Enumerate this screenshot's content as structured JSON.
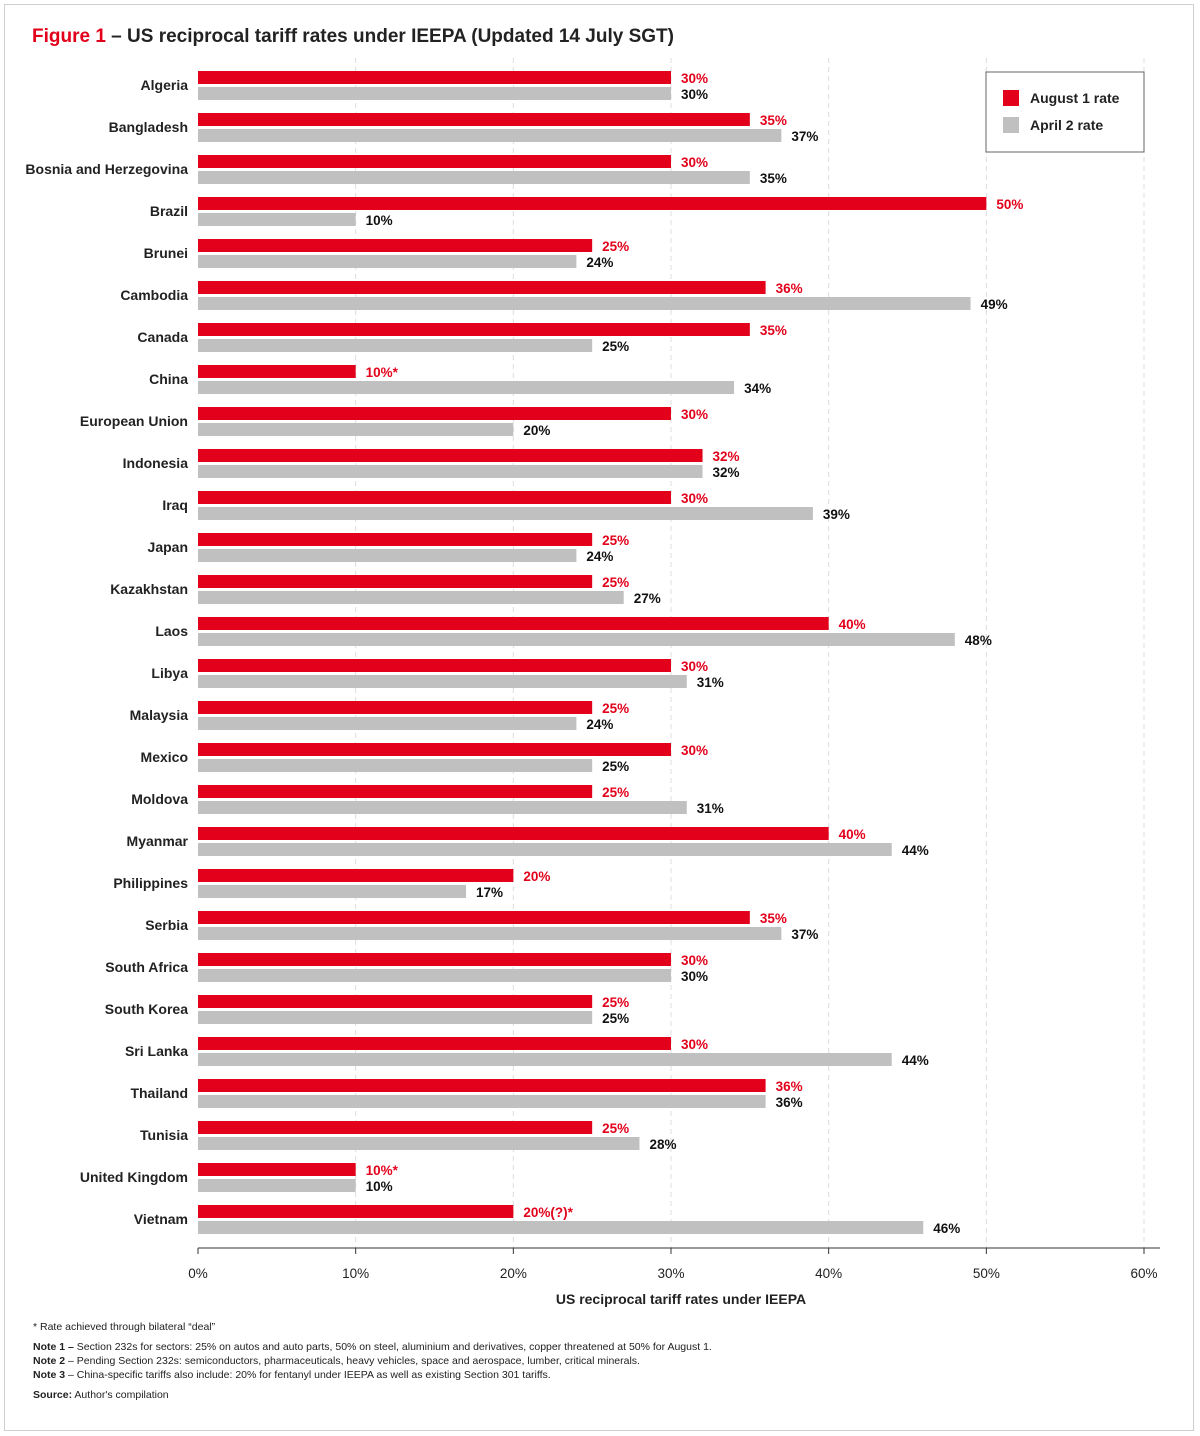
{
  "title": {
    "figure_label": "Figure 1",
    "text": " – US reciprocal tariff rates under IEEPA (Updated 14 July SGT)"
  },
  "colors": {
    "august": "#e2001a",
    "april": "#c0c0c0",
    "august_label": "#e2001a",
    "april_label": "#111111"
  },
  "chart_data": {
    "type": "bar",
    "orientation": "horizontal",
    "categories": [
      "Algeria",
      "Bangladesh",
      "Bosnia and Herzegovina",
      "Brazil",
      "Brunei",
      "Cambodia",
      "Canada",
      "China",
      "European Union",
      "Indonesia",
      "Iraq",
      "Japan",
      "Kazakhstan",
      "Laos",
      "Libya",
      "Malaysia",
      "Mexico",
      "Moldova",
      "Myanmar",
      "Philippines",
      "Serbia",
      "South Africa",
      "South Korea",
      "Sri Lanka",
      "Thailand",
      "Tunisia",
      "United Kingdom",
      "Vietnam"
    ],
    "series": [
      {
        "name": "August 1 rate",
        "values": [
          30,
          35,
          30,
          50,
          25,
          36,
          35,
          10,
          30,
          32,
          30,
          25,
          25,
          40,
          30,
          25,
          30,
          25,
          40,
          20,
          35,
          30,
          25,
          30,
          36,
          25,
          10,
          20
        ],
        "labels": [
          "30%",
          "35%",
          "30%",
          "50%",
          "25%",
          "36%",
          "35%",
          "10%*",
          "30%",
          "32%",
          "30%",
          "25%",
          "25%",
          "40%",
          "30%",
          "25%",
          "30%",
          "25%",
          "40%",
          "20%",
          "35%",
          "30%",
          "25%",
          "30%",
          "36%",
          "25%",
          "10%*",
          "20%(?)*"
        ]
      },
      {
        "name": "April 2 rate",
        "values": [
          30,
          37,
          35,
          10,
          24,
          49,
          25,
          34,
          20,
          32,
          39,
          24,
          27,
          48,
          31,
          24,
          25,
          31,
          44,
          17,
          37,
          30,
          25,
          44,
          36,
          28,
          10,
          46
        ],
        "labels": [
          "30%",
          "37%",
          "35%",
          "10%",
          "24%",
          "49%",
          "25%",
          "34%",
          "20%",
          "32%",
          "39%",
          "24%",
          "27%",
          "48%",
          "31%",
          "24%",
          "25%",
          "31%",
          "44%",
          "17%",
          "37%",
          "30%",
          "25%",
          "44%",
          "36%",
          "28%",
          "10%",
          "46%"
        ]
      }
    ],
    "xlabel": "US reciprocal tariff rates under IEEPA",
    "xlim": [
      0,
      60
    ],
    "xticks": [
      "0%",
      "10%",
      "20%",
      "30%",
      "40%",
      "50%",
      "60%"
    ],
    "grid": "vertical-dashed",
    "legend": "top-right"
  },
  "notes": {
    "asterisk": "* Rate achieved through bilateral “deal”",
    "note1_label": "Note 1 –",
    "note1_text": " Section 232s for sectors:  25% on autos and auto parts, 50% on steel, aluminium and derivatives, copper threatened at 50% for August 1.",
    "note2_label": "Note 2",
    "note2_text": " – Pending Section 232s: semiconductors, pharmaceuticals, heavy vehicles, space and aerospace, lumber, critical minerals.",
    "note3_label": "Note 3",
    "note3_text": " – China-specific tariffs also include: 20% for fentanyl under IEEPA as well as existing Section 301 tariffs.",
    "source_label": "Source:",
    "source_text": " Author's compilation"
  }
}
